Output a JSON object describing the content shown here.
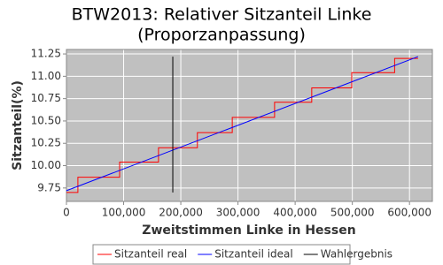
{
  "chart_data": {
    "type": "line",
    "title": "BTW2013: Relativer Sitzanteil Linke",
    "subtitle": "(Proporzanpassung)",
    "x_label": "Zweitstimmen Linke in Hessen",
    "y_label": "Sitzanteil(%)",
    "xlim": [
      0,
      640000
    ],
    "ylim": [
      9.6,
      11.3
    ],
    "xticks": [
      0,
      {
        "value": 100000,
        "label": "100,000"
      },
      {
        "value": 200000,
        "label": "200,000"
      },
      {
        "value": 300000,
        "label": "300,000"
      },
      {
        "value": 400000,
        "label": "400,000"
      },
      {
        "value": 500000,
        "label": "500,000"
      },
      {
        "value": 600000,
        "label": "600,000"
      }
    ],
    "yticks": [
      9.75,
      {
        "value": 10,
        "label": "10.00"
      },
      10.25,
      {
        "value": 10.5,
        "label": "10.50"
      },
      10.75,
      {
        "value": 11,
        "label": "11.00"
      },
      11.25
    ],
    "grid": true,
    "background": "#c0c0c0",
    "series": [
      {
        "name": "Sitzanteil real",
        "color": "#ff0000",
        "step": true,
        "x": [
          0,
          20000,
          93000,
          161000,
          229000,
          290000,
          364000,
          429000,
          499000,
          574000,
          615000
        ],
        "values": [
          9.7,
          9.87,
          10.04,
          10.2,
          10.37,
          10.54,
          10.71,
          10.87,
          11.04,
          11.2,
          11.2
        ]
      },
      {
        "name": "Sitzanteil ideal",
        "color": "#0000ff",
        "x": [
          0,
          615000
        ],
        "values": [
          9.72,
          11.22
        ]
      },
      {
        "name": "Wahlergebnis",
        "color": "#000000",
        "x": [
          186000,
          186000
        ],
        "values": [
          9.7,
          11.22
        ]
      }
    ]
  }
}
